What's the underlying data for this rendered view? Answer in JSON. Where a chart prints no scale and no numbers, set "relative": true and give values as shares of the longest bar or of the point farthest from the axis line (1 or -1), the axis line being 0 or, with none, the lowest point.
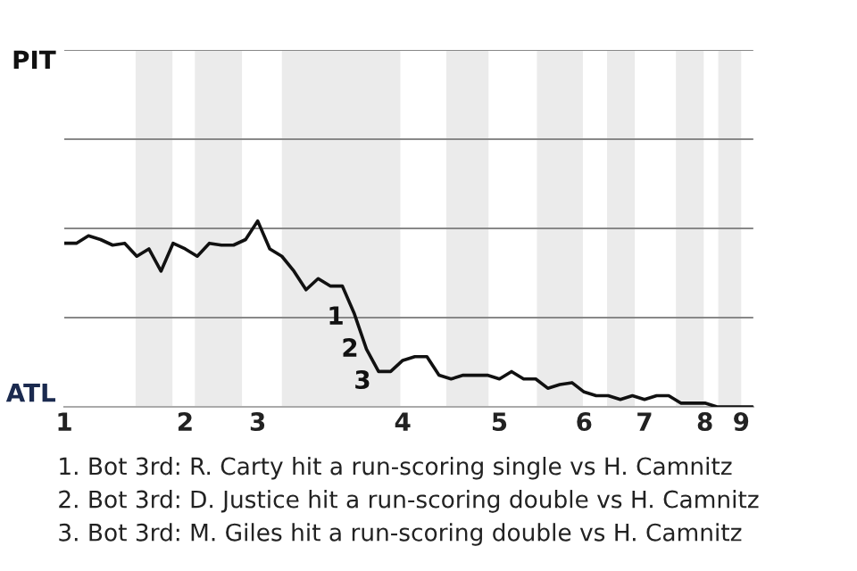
{
  "chart_data": {
    "type": "line",
    "relative": true,
    "categories": [
      "1",
      null,
      null,
      null,
      null,
      null,
      null,
      null,
      null,
      null,
      "2",
      null,
      null,
      null,
      null,
      null,
      "3",
      null,
      null,
      null,
      null,
      null,
      null,
      null,
      null,
      null,
      null,
      null,
      "4",
      null,
      null,
      null,
      null,
      null,
      null,
      null,
      "5",
      null,
      null,
      null,
      null,
      null,
      null,
      "6",
      null,
      null,
      null,
      null,
      "7",
      null,
      null,
      null,
      null,
      "8",
      null,
      null,
      "9",
      null
    ],
    "series": [
      {
        "color": "#111111",
        "values": [
          0.88,
          0.88,
          0.92,
          0.9,
          0.87,
          0.88,
          0.81,
          0.85,
          0.73,
          0.88,
          0.85,
          0.81,
          0.88,
          0.87,
          0.87,
          0.9,
          1,
          0.85,
          0.81,
          0.73,
          0.63,
          0.69,
          0.65,
          0.65,
          0.5,
          0.31,
          0.19,
          0.19,
          0.25,
          0.27,
          0.27,
          0.17,
          0.15,
          0.17,
          0.17,
          0.17,
          0.15,
          0.19,
          0.15,
          0.15,
          0.1,
          0.12,
          0.13,
          0.08,
          0.06,
          0.06,
          0.04,
          0.06,
          0.04,
          0.06,
          0.06,
          0.02,
          0.02,
          0.02,
          0,
          0,
          0,
          0
        ]
      }
    ],
    "marker": "none",
    "line_style": "solid",
    "ref_lines": [
      {
        "axis": "y",
        "value": 0.48,
        "color": "#888888"
      },
      {
        "axis": "y",
        "value": 0.96,
        "color": "#888888"
      },
      {
        "axis": "y",
        "value": 1.44,
        "color": "#888888"
      },
      {
        "axis": "y",
        "value": 1.92,
        "color": "#888888"
      }
    ],
    "annotations": [
      "PIT",
      "ATL",
      "1",
      "2",
      "3",
      "1. Bot 3rd: R. Carty hit a run-scoring single vs H. Camnitz",
      "2. Bot 3rd: D. Justice hit a run-scoring double vs H. Camnitz",
      "3. Bot 3rd: M. Giles hit a run-scoring double vs H. Camnitz"
    ]
  }
}
